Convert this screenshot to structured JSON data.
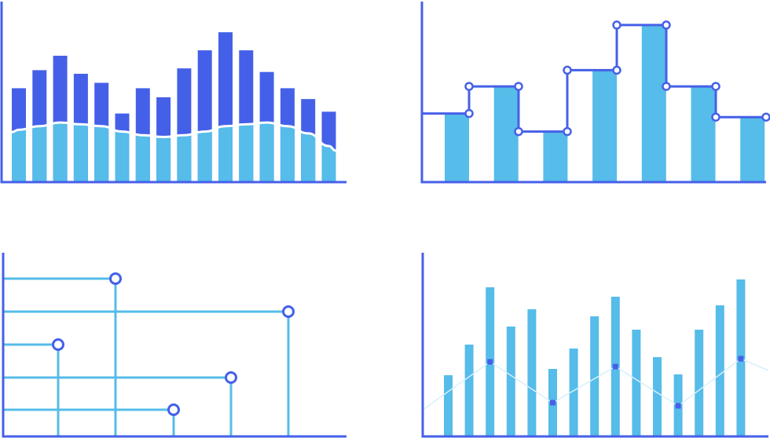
{
  "colors": {
    "dark": "#4560e8",
    "light": "#56bce9",
    "white": "#ffffff",
    "axis": "#4560e8"
  },
  "chart_data": [
    {
      "type": "bar",
      "series": [
        {
          "values": [
            52,
            62,
            70,
            60,
            55,
            38,
            52,
            47,
            63,
            73,
            83,
            73,
            61,
            52,
            46,
            39
          ]
        },
        {
          "values": [
            29,
            31,
            33,
            32,
            31,
            28,
            26,
            25,
            26,
            28,
            31,
            32,
            33,
            31,
            27,
            20
          ]
        }
      ],
      "ylim": [
        0,
        100
      ],
      "grid": false
    },
    {
      "type": "bar",
      "values": [
        38,
        53,
        28,
        62,
        87,
        53,
        36
      ],
      "step_line": [
        38,
        53,
        28,
        62,
        87,
        53,
        36
      ],
      "ylim": [
        0,
        100
      ],
      "grid": false
    },
    {
      "type": "bar",
      "orientation": "horizontal",
      "values": [
        [
          60,
          89
        ],
        [
          149,
          70
        ],
        [
          29,
          51
        ],
        [
          120,
          32
        ],
        [
          89,
          14
        ]
      ],
      "ylim": [
        0,
        100
      ],
      "grid": false
    },
    {
      "type": "bar",
      "values": [
        32,
        50,
        80,
        60,
        73,
        37,
        48,
        67,
        76,
        60,
        44,
        32,
        59,
        74,
        87
      ],
      "line": [
        null,
        null,
        42,
        null,
        null,
        18,
        null,
        null,
        39,
        null,
        null,
        16,
        null,
        null,
        43
      ],
      "ylim": [
        0,
        100
      ],
      "grid": false
    }
  ]
}
